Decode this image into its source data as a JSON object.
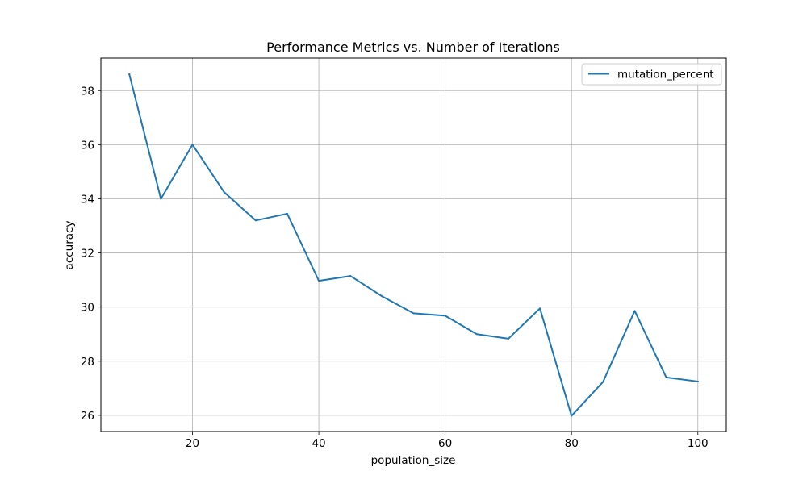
{
  "chart_data": {
    "type": "line",
    "title": "Performance Metrics vs. Number of Iterations",
    "xlabel": "population_size",
    "ylabel": "accuracy",
    "xlim": [
      5.5,
      104.5
    ],
    "ylim": [
      25.4,
      39.2
    ],
    "xticks": [
      20,
      40,
      60,
      80,
      100
    ],
    "yticks": [
      26,
      28,
      30,
      32,
      34,
      36,
      38
    ],
    "grid": true,
    "legend": {
      "position": "top-right"
    },
    "x": [
      10,
      15,
      20,
      25,
      30,
      35,
      40,
      45,
      50,
      55,
      60,
      65,
      70,
      75,
      80,
      85,
      90,
      95,
      100
    ],
    "series": [
      {
        "name": "mutation_percent",
        "color": "#1f77b4",
        "values": [
          38.6,
          34.0,
          36.0,
          34.25,
          33.2,
          33.45,
          30.97,
          31.15,
          30.4,
          29.77,
          29.68,
          29.0,
          28.83,
          29.95,
          25.98,
          27.24,
          29.86,
          27.4,
          27.25
        ]
      }
    ]
  }
}
